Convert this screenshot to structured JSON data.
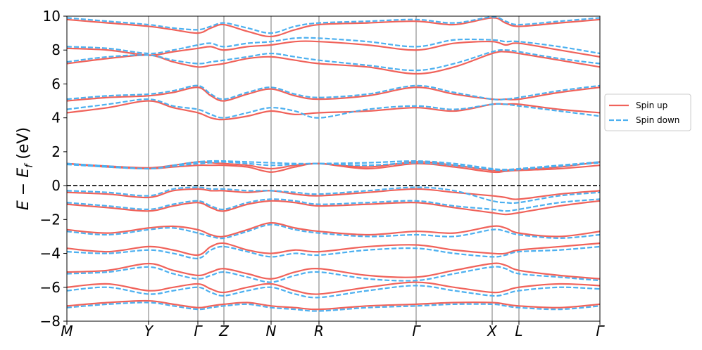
{
  "chart_data": {
    "type": "band-structure",
    "ylabel": [
      "E − E",
      "f",
      " (eV)"
    ],
    "xlim": [
      0,
      7.57
    ],
    "xticks": [
      {
        "value": 0,
        "label": "M"
      },
      {
        "value": 1.16,
        "label": "Y"
      },
      {
        "value": 1.86,
        "label": "Γ"
      },
      {
        "value": 2.23,
        "label": "Z"
      },
      {
        "value": 2.9,
        "label": "N"
      },
      {
        "value": 3.58,
        "label": "R"
      },
      {
        "value": 4.96,
        "label": "Γ"
      },
      {
        "value": 6.04,
        "label": "X"
      },
      {
        "value": 6.42,
        "label": "L"
      },
      {
        "value": 7.57,
        "label": "Γ"
      }
    ],
    "ylim": [
      -8,
      10
    ],
    "yticks": [
      {
        "value": -8,
        "label": "−8"
      },
      {
        "value": -6,
        "label": "−6"
      },
      {
        "value": -4,
        "label": "−4"
      },
      {
        "value": -2,
        "label": "−2"
      },
      0,
      2,
      4,
      6,
      8,
      10
    ],
    "fermi_level": 0,
    "xgrid": true,
    "legend": "outside-right",
    "x": [
      0,
      0.58,
      1.16,
      1.51,
      1.86,
      2.045,
      2.23,
      2.565,
      2.9,
      3.24,
      3.58,
      4.27,
      4.96,
      5.5,
      6.04,
      6.23,
      6.42,
      6.995,
      7.57
    ],
    "series": [
      {
        "name": "Spin up",
        "color": "#f0625a",
        "dash": false,
        "bands": [
          [
            1.3,
            1.1,
            1.0,
            1.1,
            1.2,
            1.2,
            1.2,
            1.1,
            0.8,
            1.1,
            1.3,
            1.0,
            1.3,
            1.1,
            0.8,
            0.85,
            0.9,
            1.0,
            1.2
          ],
          [
            1.3,
            1.15,
            1.05,
            1.2,
            1.4,
            1.35,
            1.3,
            1.2,
            1.0,
            1.2,
            1.3,
            1.1,
            1.4,
            1.2,
            0.9,
            0.9,
            0.95,
            1.1,
            1.4
          ],
          [
            4.3,
            4.6,
            5.0,
            4.6,
            4.3,
            4.0,
            3.9,
            4.1,
            4.4,
            4.2,
            4.3,
            4.4,
            4.6,
            4.4,
            4.8,
            4.8,
            4.8,
            4.5,
            4.3
          ],
          [
            5.0,
            5.2,
            5.3,
            5.5,
            5.8,
            5.3,
            5.0,
            5.4,
            5.7,
            5.3,
            5.1,
            5.3,
            5.8,
            5.4,
            5.1,
            5.1,
            5.1,
            5.5,
            5.8
          ],
          [
            7.2,
            7.5,
            7.7,
            7.3,
            7.0,
            7.1,
            7.2,
            7.5,
            7.6,
            7.4,
            7.2,
            7.0,
            6.6,
            7.0,
            7.8,
            7.9,
            7.8,
            7.4,
            7.0
          ],
          [
            8.1,
            8.0,
            7.7,
            7.9,
            8.1,
            8.2,
            8.0,
            8.2,
            8.3,
            8.5,
            8.5,
            8.3,
            8.0,
            8.4,
            8.5,
            8.3,
            8.4,
            8.0,
            7.6
          ],
          [
            9.8,
            9.6,
            9.4,
            9.2,
            9.0,
            9.3,
            9.5,
            9.1,
            8.8,
            9.2,
            9.5,
            9.6,
            9.7,
            9.5,
            9.9,
            9.6,
            9.4,
            9.6,
            9.8
          ],
          [
            -0.4,
            -0.5,
            -0.7,
            -0.3,
            -0.2,
            -0.3,
            -0.3,
            -0.4,
            -0.3,
            -0.5,
            -0.6,
            -0.4,
            -0.2,
            -0.4,
            -0.6,
            -0.7,
            -0.8,
            -0.5,
            -0.3
          ],
          [
            -1.1,
            -1.3,
            -1.5,
            -1.2,
            -1.0,
            -1.3,
            -1.5,
            -1.1,
            -0.9,
            -1.0,
            -1.2,
            -1.1,
            -1.0,
            -1.3,
            -1.6,
            -1.7,
            -1.6,
            -1.2,
            -0.9
          ],
          [
            -2.6,
            -2.8,
            -2.5,
            -2.4,
            -2.6,
            -2.9,
            -3.0,
            -2.6,
            -2.2,
            -2.5,
            -2.7,
            -2.9,
            -2.7,
            -2.8,
            -2.4,
            -2.5,
            -2.8,
            -3.0,
            -2.7
          ],
          [
            -3.7,
            -3.9,
            -3.6,
            -3.8,
            -4.1,
            -3.6,
            -3.4,
            -3.8,
            -4.0,
            -3.8,
            -3.9,
            -3.6,
            -3.5,
            -3.8,
            -4.0,
            -4.0,
            -3.8,
            -3.6,
            -3.4
          ],
          [
            -5.1,
            -5.0,
            -4.6,
            -5.0,
            -5.3,
            -5.1,
            -4.9,
            -5.2,
            -5.5,
            -5.1,
            -4.9,
            -5.3,
            -5.4,
            -5.0,
            -4.6,
            -4.7,
            -5.0,
            -5.3,
            -5.5
          ],
          [
            -6.0,
            -5.8,
            -6.2,
            -6.0,
            -5.8,
            -6.1,
            -6.3,
            -6.0,
            -5.8,
            -6.2,
            -6.4,
            -6.0,
            -5.7,
            -6.0,
            -6.3,
            -6.2,
            -6.0,
            -5.8,
            -5.9
          ],
          [
            -7.1,
            -6.9,
            -6.8,
            -7.0,
            -7.2,
            -7.1,
            -7.0,
            -6.9,
            -7.1,
            -7.2,
            -7.3,
            -7.1,
            -7.0,
            -6.9,
            -6.9,
            -7.0,
            -7.1,
            -7.2,
            -7.0
          ]
        ]
      },
      {
        "name": "Spin down",
        "color": "#4cb0f0",
        "dash": true,
        "bands": [
          [
            1.3,
            1.15,
            1.0,
            1.2,
            1.4,
            1.45,
            1.45,
            1.4,
            1.35,
            1.3,
            1.3,
            1.35,
            1.45,
            1.3,
            1.0,
            0.95,
            1.0,
            1.2,
            1.4
          ],
          [
            1.25,
            1.1,
            1.0,
            1.15,
            1.3,
            1.35,
            1.4,
            1.3,
            1.2,
            1.25,
            1.3,
            1.2,
            1.35,
            1.2,
            0.95,
            0.9,
            0.95,
            1.15,
            1.35
          ],
          [
            4.5,
            4.8,
            5.1,
            4.7,
            4.5,
            4.2,
            4.0,
            4.3,
            4.6,
            4.4,
            4.0,
            4.5,
            4.7,
            4.5,
            4.8,
            4.8,
            4.7,
            4.4,
            4.1
          ],
          [
            5.1,
            5.3,
            5.4,
            5.6,
            5.9,
            5.4,
            5.1,
            5.5,
            5.8,
            5.4,
            5.2,
            5.4,
            5.9,
            5.5,
            5.1,
            5.1,
            5.2,
            5.6,
            5.9
          ],
          [
            7.3,
            7.6,
            7.7,
            7.4,
            7.2,
            7.3,
            7.4,
            7.6,
            7.8,
            7.6,
            7.4,
            7.1,
            6.8,
            7.2,
            7.9,
            8.0,
            7.9,
            7.5,
            7.2
          ],
          [
            8.2,
            8.1,
            7.8,
            8.0,
            8.3,
            8.4,
            8.2,
            8.4,
            8.5,
            8.7,
            8.7,
            8.5,
            8.2,
            8.6,
            8.6,
            8.5,
            8.5,
            8.2,
            7.8
          ],
          [
            9.9,
            9.7,
            9.5,
            9.3,
            9.2,
            9.4,
            9.6,
            9.3,
            9.0,
            9.4,
            9.6,
            9.7,
            9.8,
            9.6,
            9.95,
            9.7,
            9.5,
            9.7,
            9.9
          ],
          [
            -0.3,
            -0.4,
            -0.6,
            -0.2,
            -0.1,
            -0.2,
            -0.2,
            -0.3,
            -0.3,
            -0.4,
            -0.5,
            -0.3,
            -0.1,
            -0.3,
            -0.9,
            -1.0,
            -1.0,
            -0.6,
            -0.4
          ],
          [
            -1.0,
            -1.2,
            -1.4,
            -1.1,
            -0.9,
            -1.2,
            -1.4,
            -1.0,
            -0.8,
            -0.9,
            -1.1,
            -1.0,
            -0.9,
            -1.2,
            -1.4,
            -1.5,
            -1.4,
            -1.0,
            -0.8
          ],
          [
            -2.7,
            -2.9,
            -2.6,
            -2.5,
            -2.8,
            -3.0,
            -3.1,
            -2.7,
            -2.3,
            -2.6,
            -2.8,
            -3.0,
            -2.9,
            -3.0,
            -2.6,
            -2.7,
            -2.9,
            -3.1,
            -2.9
          ],
          [
            -3.9,
            -4.0,
            -3.8,
            -4.0,
            -4.3,
            -3.8,
            -3.6,
            -3.9,
            -4.2,
            -4.0,
            -4.1,
            -3.8,
            -3.7,
            -4.0,
            -4.2,
            -4.1,
            -3.9,
            -3.8,
            -3.6
          ],
          [
            -5.2,
            -5.1,
            -4.8,
            -5.2,
            -5.5,
            -5.3,
            -5.1,
            -5.4,
            -5.7,
            -5.3,
            -5.1,
            -5.5,
            -5.6,
            -5.2,
            -4.8,
            -4.9,
            -5.2,
            -5.4,
            -5.6
          ],
          [
            -6.2,
            -6.0,
            -6.4,
            -6.2,
            -6.0,
            -6.3,
            -6.5,
            -6.2,
            -6.0,
            -6.4,
            -6.6,
            -6.2,
            -5.9,
            -6.2,
            -6.5,
            -6.4,
            -6.2,
            -6.0,
            -6.1
          ],
          [
            -7.2,
            -7.0,
            -6.9,
            -7.1,
            -7.3,
            -7.2,
            -7.1,
            -7.0,
            -7.2,
            -7.3,
            -7.4,
            -7.2,
            -7.1,
            -7.0,
            -7.0,
            -7.1,
            -7.2,
            -7.3,
            -7.1
          ]
        ]
      }
    ]
  }
}
